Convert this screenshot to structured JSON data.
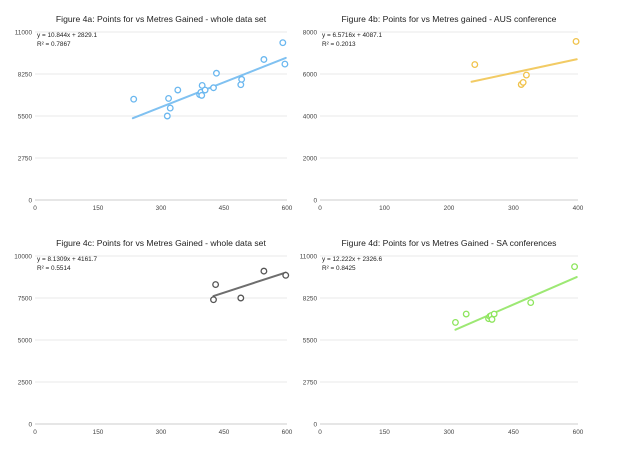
{
  "chart_data": [
    {
      "type": "scatter",
      "title": "Figure 4a: Points for vs Metres Gained - whole data set",
      "xlabel": "",
      "ylabel": "",
      "xlim": [
        0,
        600
      ],
      "ylim": [
        0,
        11000
      ],
      "x_ticks": [
        "0",
        "150",
        "300",
        "450",
        "600"
      ],
      "y_ticks": [
        "0",
        "2750",
        "5500",
        "8250",
        "11000"
      ],
      "grid": true,
      "legend": "none",
      "color": "#6ab7ef",
      "equation": "y = 10.844x + 2829.1",
      "r_squared": "R² = 0.7867",
      "trendline": {
        "slope": 10.844,
        "intercept": 2829.1,
        "x_range": [
          233,
          597
        ]
      },
      "points": [
        {
          "x": 235,
          "y": 6600
        },
        {
          "x": 315,
          "y": 5500
        },
        {
          "x": 318,
          "y": 6650
        },
        {
          "x": 322,
          "y": 6020
        },
        {
          "x": 340,
          "y": 7200
        },
        {
          "x": 392,
          "y": 6900
        },
        {
          "x": 395,
          "y": 7050
        },
        {
          "x": 397,
          "y": 6850
        },
        {
          "x": 398,
          "y": 7500
        },
        {
          "x": 405,
          "y": 7200
        },
        {
          "x": 425,
          "y": 7350
        },
        {
          "x": 432,
          "y": 8300
        },
        {
          "x": 490,
          "y": 7550
        },
        {
          "x": 492,
          "y": 7900
        },
        {
          "x": 545,
          "y": 9200
        },
        {
          "x": 590,
          "y": 10300
        },
        {
          "x": 595,
          "y": 8900
        }
      ]
    },
    {
      "type": "scatter",
      "title": "Figure 4b: Points for vs Metres gained - AUS conference",
      "xlabel": "",
      "ylabel": "",
      "xlim": [
        0,
        400
      ],
      "ylim": [
        0,
        8000
      ],
      "x_ticks": [
        "0",
        "100",
        "200",
        "300",
        "400"
      ],
      "y_ticks": [
        "0",
        "2000",
        "4000",
        "6000",
        "8000"
      ],
      "grid": true,
      "legend": "none",
      "color": "#f0c24a",
      "equation": "y = 6.5716x + 4087.1",
      "r_squared": "R² = 0.2013",
      "trendline": {
        "slope": 6.5716,
        "intercept": 4087.1,
        "x_range": [
          235,
          398
        ]
      },
      "points": [
        {
          "x": 240,
          "y": 6450
        },
        {
          "x": 312,
          "y": 5500
        },
        {
          "x": 315,
          "y": 5600
        },
        {
          "x": 320,
          "y": 5950
        },
        {
          "x": 397,
          "y": 7550
        }
      ]
    },
    {
      "type": "scatter",
      "title": "Figure 4c: Points for vs Metres Gained - whole data set",
      "xlabel": "",
      "ylabel": "",
      "xlim": [
        0,
        600
      ],
      "ylim": [
        0,
        10000
      ],
      "x_ticks": [
        "0",
        "150",
        "300",
        "450",
        "600"
      ],
      "y_ticks": [
        "0",
        "2500",
        "5000",
        "7500",
        "10000"
      ],
      "grid": true,
      "legend": "none",
      "color": "#555555",
      "equation": "y = 8.1309x + 4161.7",
      "r_squared": "R² = 0.5514",
      "trendline": {
        "slope": 8.1309,
        "intercept": 4161.7,
        "x_range": [
          425,
          597
        ]
      },
      "points": [
        {
          "x": 425,
          "y": 7400
        },
        {
          "x": 430,
          "y": 8300
        },
        {
          "x": 490,
          "y": 7500
        },
        {
          "x": 545,
          "y": 9100
        },
        {
          "x": 597,
          "y": 8850
        }
      ]
    },
    {
      "type": "scatter",
      "title": "Figure 4d: Points for vs Metres Gained - SA conferences",
      "xlabel": "",
      "ylabel": "",
      "xlim": [
        0,
        600
      ],
      "ylim": [
        0,
        11000
      ],
      "x_ticks": [
        "0",
        "150",
        "300",
        "450",
        "600"
      ],
      "y_ticks": [
        "0",
        "2750",
        "5500",
        "8250",
        "11000"
      ],
      "grid": true,
      "legend": "none",
      "color": "#8de55c",
      "equation": "y = 12.222x + 2326.6",
      "r_squared": "R² = 0.8425",
      "trendline": {
        "slope": 12.222,
        "intercept": 2326.6,
        "x_range": [
          315,
          597
        ]
      },
      "points": [
        {
          "x": 315,
          "y": 6650
        },
        {
          "x": 340,
          "y": 7200
        },
        {
          "x": 392,
          "y": 6900
        },
        {
          "x": 395,
          "y": 7050
        },
        {
          "x": 398,
          "y": 7100
        },
        {
          "x": 400,
          "y": 6850
        },
        {
          "x": 405,
          "y": 7200
        },
        {
          "x": 490,
          "y": 7950
        },
        {
          "x": 592,
          "y": 10300
        }
      ]
    }
  ]
}
